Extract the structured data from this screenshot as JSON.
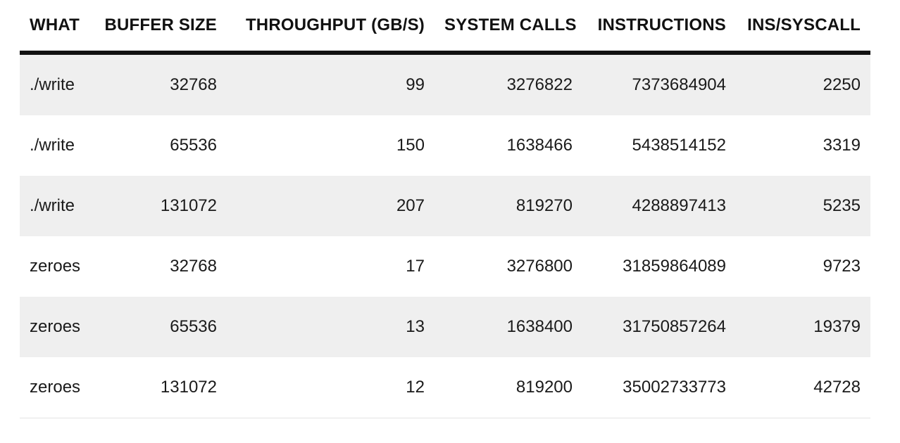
{
  "table": {
    "headers": [
      "WHAT",
      "BUFFER SIZE",
      "THROUGHPUT (GB/S)",
      "SYSTEM CALLS",
      "INSTRUCTIONS",
      "INS/SYSCALL"
    ],
    "rows": [
      [
        "./write",
        "32768",
        "99",
        "3276822",
        "7373684904",
        "2250"
      ],
      [
        "./write",
        "65536",
        "150",
        "1638466",
        "5438514152",
        "3319"
      ],
      [
        "./write",
        "131072",
        "207",
        "819270",
        "4288897413",
        "5235"
      ],
      [
        "zeroes",
        "32768",
        "17",
        "3276800",
        "31859864089",
        "9723"
      ],
      [
        "zeroes",
        "65536",
        "13",
        "1638400",
        "31750857264",
        "19379"
      ],
      [
        "zeroes",
        "131072",
        "12",
        "819200",
        "35002733773",
        "42728"
      ]
    ]
  }
}
